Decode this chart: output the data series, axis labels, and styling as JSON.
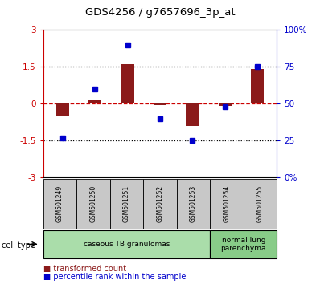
{
  "title": "GDS4256 / g7657696_3p_at",
  "samples": [
    "GSM501249",
    "GSM501250",
    "GSM501251",
    "GSM501252",
    "GSM501253",
    "GSM501254",
    "GSM501255"
  ],
  "red_values": [
    -0.5,
    0.15,
    1.6,
    -0.05,
    -0.9,
    -0.1,
    1.4
  ],
  "blue_values": [
    27,
    60,
    90,
    40,
    25,
    48,
    75
  ],
  "ylim_left": [
    -3,
    3
  ],
  "ylim_right": [
    0,
    100
  ],
  "yticks_left": [
    -3,
    -1.5,
    0,
    1.5,
    3
  ],
  "ytick_labels_left": [
    "-3",
    "-1.5",
    "0",
    "1.5",
    "3"
  ],
  "yticks_right": [
    0,
    25,
    50,
    75,
    100
  ],
  "ytick_labels_right": [
    "0%",
    "25",
    "50",
    "75",
    "100%"
  ],
  "red_color": "#8B1A1A",
  "blue_color": "#0000CC",
  "bar_width": 0.4,
  "cell_groups": [
    {
      "label": "caseous TB granulomas",
      "indices": [
        0,
        1,
        2,
        3,
        4
      ],
      "color": "#AADDAA"
    },
    {
      "label": "normal lung\nparenchyma",
      "indices": [
        5,
        6
      ],
      "color": "#88CC88"
    }
  ],
  "cell_type_label": "cell type",
  "legend_red": "transformed count",
  "legend_blue": "percentile rank within the sample",
  "tick_label_color_left": "#CC0000",
  "tick_label_color_right": "#0000CC",
  "sample_box_color": "#C8C8C8",
  "bg_color": "white"
}
